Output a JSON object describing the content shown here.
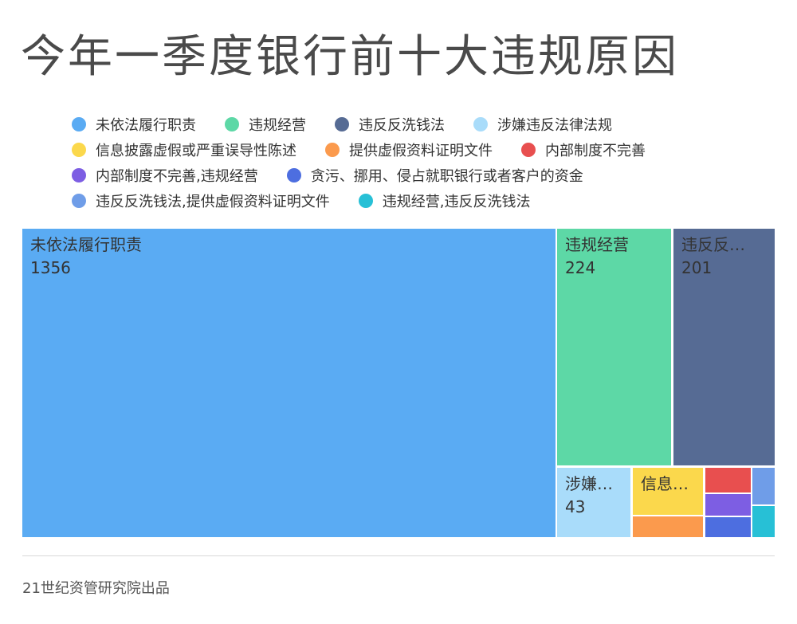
{
  "title": "今年一季度银行前十大违规原因",
  "source": "21世纪资管研究院出品",
  "chart_data": {
    "type": "treemap",
    "title": "今年一季度银行前十大违规原因",
    "legend_placement": "top",
    "items": [
      {
        "name": "未依法履行职责",
        "short": "未依法履行职责",
        "value": 1356,
        "color": "#5aabf3"
      },
      {
        "name": "违规经营",
        "short": "违规经营",
        "value": 224,
        "color": "#5dd8a6"
      },
      {
        "name": "违反反洗钱法",
        "short": "违反反…",
        "value": 201,
        "color": "#566b94"
      },
      {
        "name": "涉嫌违反法律法规",
        "short": "涉嫌…",
        "value": 43,
        "color": "#a9dcfa"
      },
      {
        "name": "信息披露虚假或严重误导性陈述",
        "short": "信息…",
        "value": 36,
        "color": "#fbd84c"
      },
      {
        "name": "提供虚假资料证明文件",
        "short": "",
        "value": 10,
        "color": "#fb9a4d"
      },
      {
        "name": "内部制度不完善",
        "short": "",
        "value": 12,
        "color": "#e84f4f"
      },
      {
        "name": "内部制度不完善,违规经营",
        "short": "",
        "value": 9,
        "color": "#7d5ee3"
      },
      {
        "name": "贪污、挪用、侵占就职银行或者客户的资金",
        "short": "",
        "value": 9,
        "color": "#4d6ee0"
      },
      {
        "name": "违反反洗钱法,提供虚假资料证明文件",
        "short": "",
        "value": 9,
        "color": "#6f9de8"
      },
      {
        "name": "违规经营,违反反洗钱法",
        "short": "",
        "value": 8,
        "color": "#27c0d6"
      }
    ],
    "legend_rows": [
      [
        0,
        1,
        2,
        3
      ],
      [
        4,
        5,
        6
      ],
      [
        7,
        8
      ],
      [
        9,
        10
      ]
    ]
  }
}
